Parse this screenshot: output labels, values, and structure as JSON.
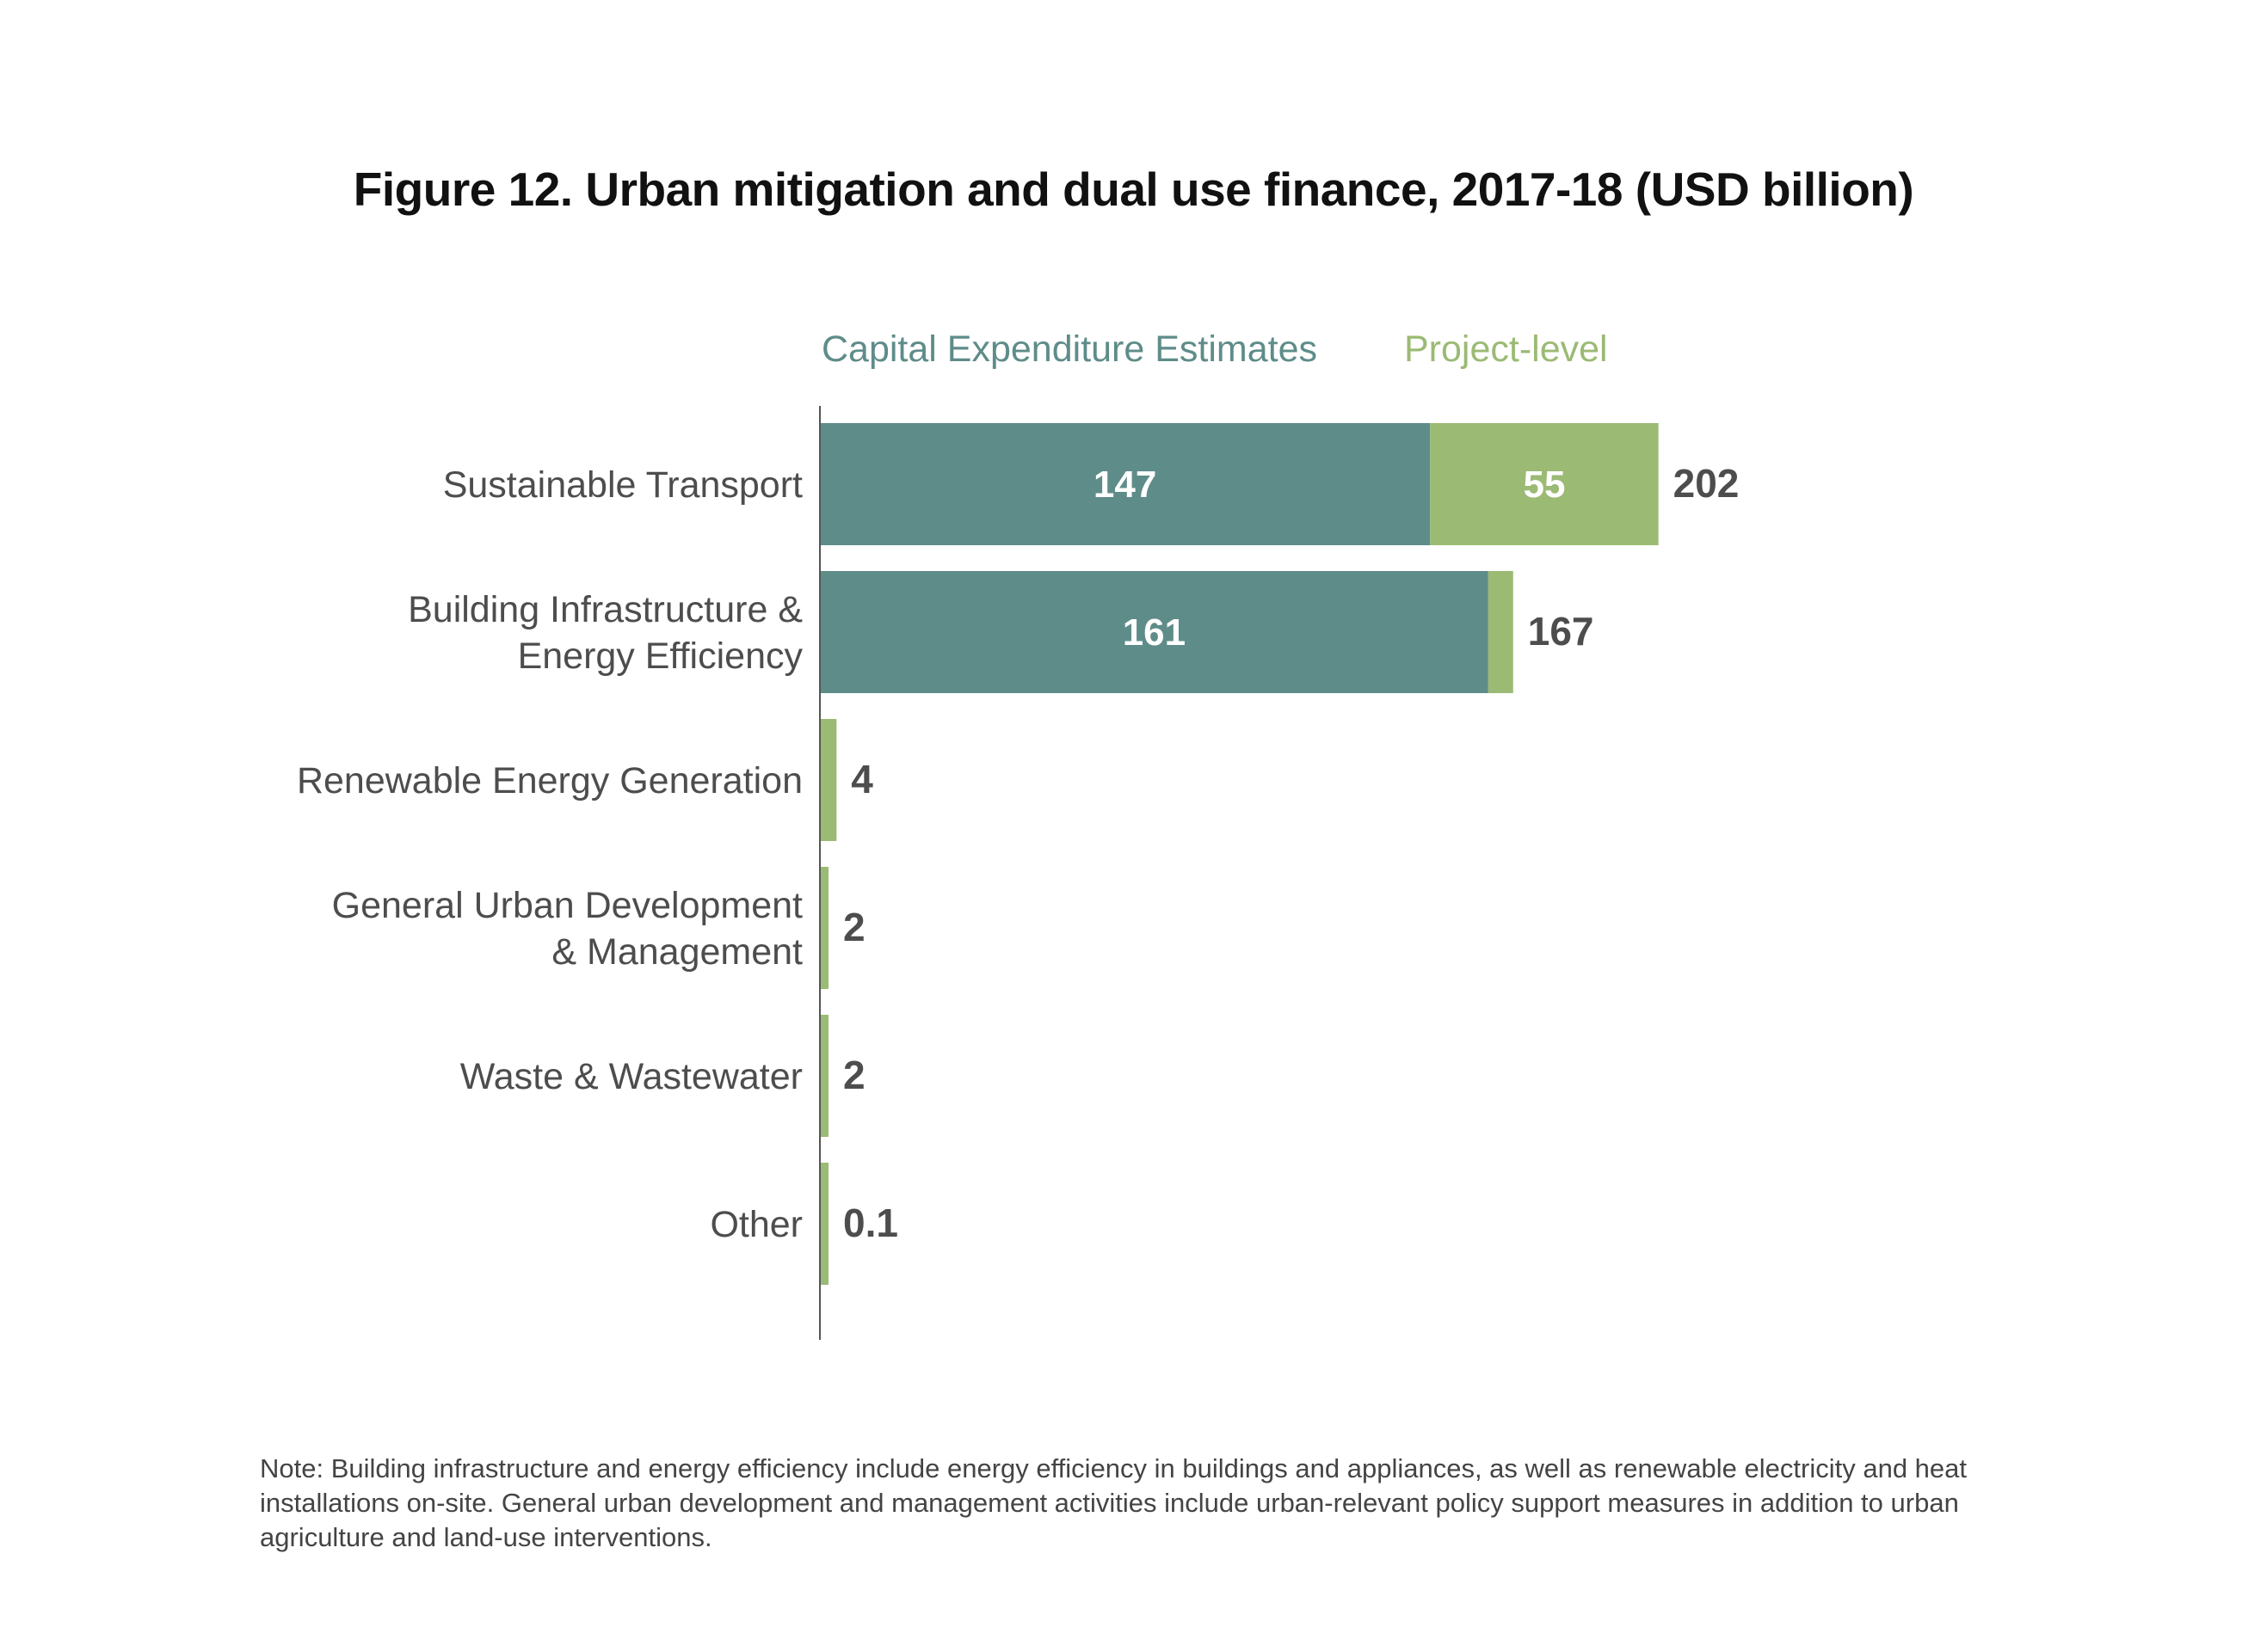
{
  "title": "Figure 12. Urban mitigation and dual use finance, 2017-18 (USD billion)",
  "note": "Note: Building infrastructure and energy efficiency include energy efficiency in buildings and appliances, as well as renewable electricity and heat installations on-site. General urban development and management activities include urban-relevant policy support measures in addition to urban agriculture and land-use interventions.",
  "colors": {
    "capex": "#5e8c89",
    "project": "#9bba74",
    "label_text": "#4d4d4d",
    "total_text": "#4d4d4d",
    "inner_text": "#ffffff"
  },
  "chart_data": {
    "type": "bar",
    "orientation": "horizontal",
    "stacked": true,
    "title": "Figure 12. Urban mitigation and dual use finance, 2017-18 (USD billion)",
    "xlabel": "",
    "ylabel": "",
    "xlim": [
      0,
      210
    ],
    "grid": false,
    "legend_position": "top",
    "categories": [
      [
        "Sustainable Transport"
      ],
      [
        "Building Infrastructure &",
        "Energy Efficiency"
      ],
      [
        "Renewable Energy Generation"
      ],
      [
        "General Urban Development",
        "& Management"
      ],
      [
        "Waste & Wastewater"
      ],
      [
        "Other"
      ]
    ],
    "series": [
      {
        "name": "Capital Expenditure Estimates",
        "values": [
          147,
          161,
          0,
          0,
          0,
          0
        ],
        "labels": [
          "147",
          "161",
          "",
          "",
          "",
          ""
        ]
      },
      {
        "name": "Project-level",
        "values": [
          55,
          6,
          4,
          2,
          2,
          0.1
        ],
        "labels": [
          "55",
          "",
          "",
          "",
          "",
          ""
        ]
      }
    ],
    "totals": [
      "202",
      "167",
      "4",
      "2",
      "2",
      "0.1"
    ]
  }
}
